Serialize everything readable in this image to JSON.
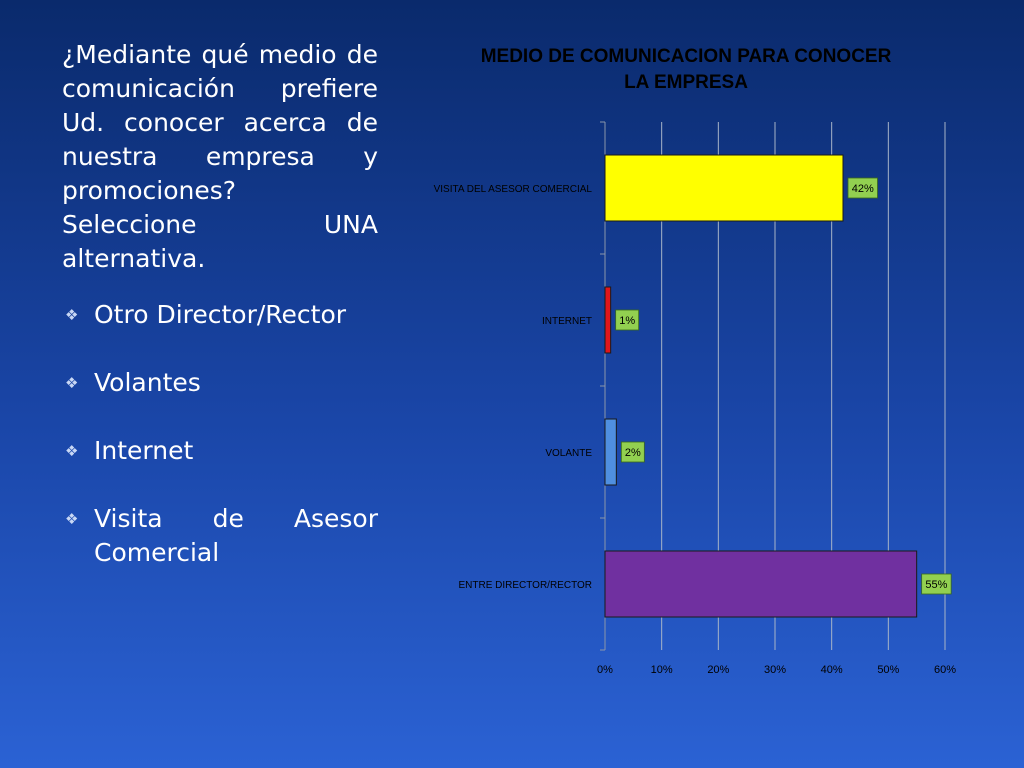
{
  "question": "¿Mediante qué medio de comunicación prefiere Ud. conocer acerca de nuestra empresa y promociones? Seleccione UNA alternativa.",
  "options": [
    "Otro Director/Rector",
    "Volantes",
    "Internet",
    "Visita de Asesor Comercial"
  ],
  "chart_data": {
    "type": "bar",
    "orientation": "horizontal",
    "title": "MEDIO DE COMUNICACION PARA CONOCER LA EMPRESA",
    "categories": [
      "VISITA DEL ASESOR COMERCIAL",
      "INTERNET",
      "VOLANTE",
      "ENTRE DIRECTOR/RECTOR"
    ],
    "values": [
      0.42,
      0.01,
      0.02,
      0.55
    ],
    "data_labels": [
      "42%",
      "1%",
      "2%",
      "55%"
    ],
    "bar_colors": [
      "#ffff00",
      "#e0161b",
      "#4f8fe0",
      "#7030a0"
    ],
    "xlim": [
      0,
      0.6
    ],
    "x_ticks": [
      0,
      0.1,
      0.2,
      0.3,
      0.4,
      0.5,
      0.6
    ],
    "x_tick_labels": [
      "0%",
      "10%",
      "20%",
      "30%",
      "40%",
      "50%",
      "60%"
    ],
    "grid": true,
    "legend": "none",
    "label_box_color": "#92d050"
  }
}
